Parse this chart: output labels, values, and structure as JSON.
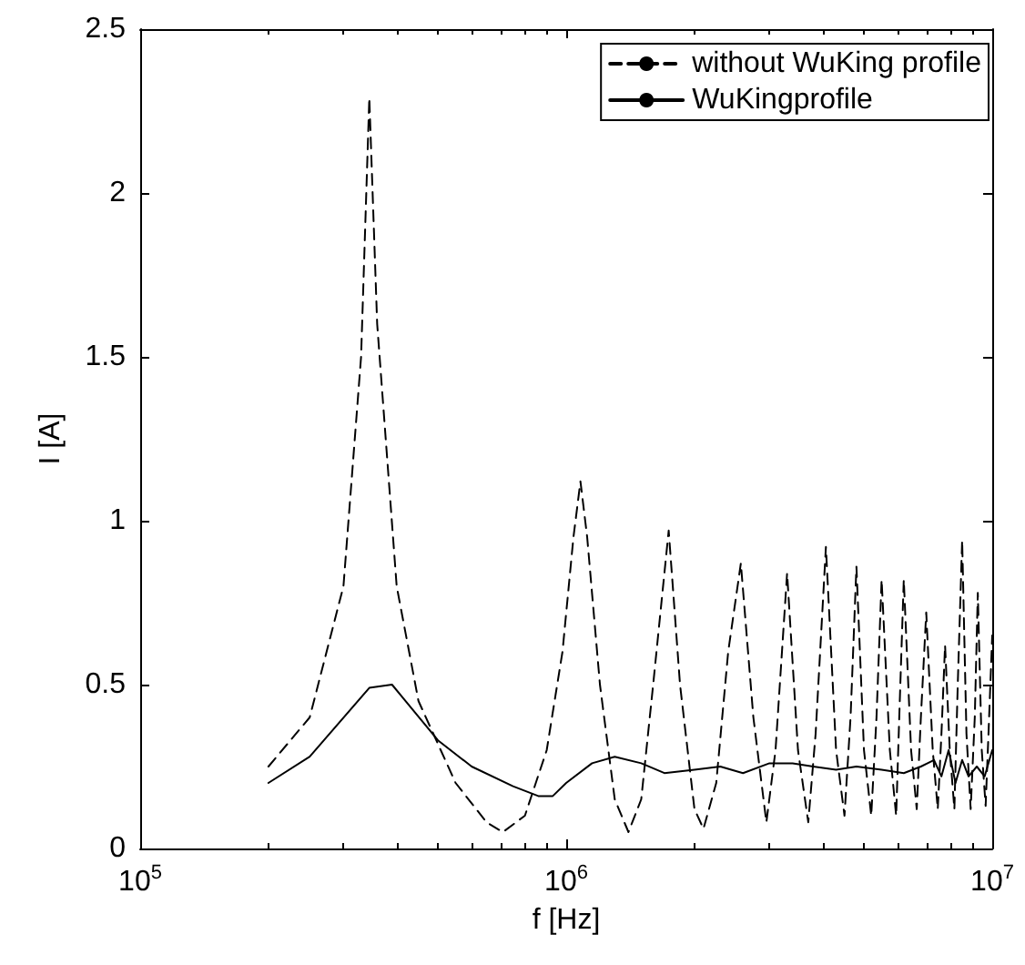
{
  "chart_data": {
    "type": "line",
    "xlabel": "f [Hz]",
    "ylabel": "I [A]",
    "log": "x",
    "grid": false,
    "legend": "top right",
    "marker": "none",
    "xlim": [
      100000,
      10000000
    ],
    "xticks": [
      {
        "value": 100000,
        "label": "10$^{5}$"
      },
      {
        "value": 1000000,
        "label": "10$^{6}$"
      },
      {
        "value": 10000000,
        "label": "10$^{7}$"
      }
    ],
    "ylim": [
      0,
      2.5
    ],
    "yticks": [
      0,
      0.5,
      1,
      1.5,
      2,
      2.5
    ],
    "series": [
      {
        "name": "without WuKing profile",
        "color": "#000000",
        "line_style": "dashed",
        "x": [
          200000,
          250000,
          300000,
          330000,
          345000,
          360000,
          400000,
          450000,
          550000,
          650000,
          710000,
          800000,
          900000,
          980000,
          1040000,
          1080000,
          1120000,
          1200000,
          1300000,
          1400000,
          1500000,
          1600000,
          1740000,
          1850000,
          2000000,
          2100000,
          2250000,
          2400000,
          2570000,
          2750000,
          2950000,
          3100000,
          3300000,
          3500000,
          3700000,
          3850000,
          4070000,
          4300000,
          4500000,
          4650000,
          4800000,
          5000000,
          5200000,
          5350000,
          5500000,
          5750000,
          5950000,
          6050000,
          6200000,
          6450000,
          6650000,
          6800000,
          7000000,
          7250000,
          7450000,
          7600000,
          7750000,
          7950000,
          8150000,
          8300000,
          8500000,
          8700000,
          8900000,
          9100000,
          9250000,
          9450000,
          9650000,
          9800000,
          10000000
        ],
        "values": [
          0.25,
          0.4,
          0.8,
          1.5,
          2.29,
          1.6,
          0.8,
          0.45,
          0.2,
          0.08,
          0.05,
          0.1,
          0.3,
          0.6,
          0.95,
          1.12,
          0.95,
          0.5,
          0.15,
          0.05,
          0.15,
          0.5,
          0.97,
          0.5,
          0.12,
          0.06,
          0.2,
          0.6,
          0.87,
          0.4,
          0.08,
          0.3,
          0.84,
          0.3,
          0.08,
          0.35,
          0.92,
          0.3,
          0.1,
          0.4,
          0.86,
          0.3,
          0.1,
          0.4,
          0.82,
          0.3,
          0.1,
          0.4,
          0.82,
          0.3,
          0.12,
          0.4,
          0.72,
          0.3,
          0.12,
          0.35,
          0.62,
          0.3,
          0.12,
          0.5,
          0.94,
          0.35,
          0.12,
          0.4,
          0.78,
          0.3,
          0.13,
          0.35,
          0.65
        ]
      },
      {
        "name": "WuKingprofile",
        "color": "#000000",
        "line_style": "solid",
        "x": [
          200000,
          250000,
          345000,
          390000,
          500000,
          600000,
          750000,
          860000,
          930000,
          1000000,
          1150000,
          1300000,
          1500000,
          1700000,
          2000000,
          2300000,
          2600000,
          3000000,
          3400000,
          3800000,
          4300000,
          4800000,
          5500000,
          6200000,
          6800000,
          7300000,
          7600000,
          7900000,
          8200000,
          8500000,
          8800000,
          9200000,
          9600000,
          10000000
        ],
        "values": [
          0.2,
          0.28,
          0.49,
          0.5,
          0.33,
          0.25,
          0.19,
          0.16,
          0.16,
          0.2,
          0.26,
          0.28,
          0.26,
          0.23,
          0.24,
          0.25,
          0.23,
          0.26,
          0.26,
          0.25,
          0.24,
          0.25,
          0.24,
          0.23,
          0.25,
          0.27,
          0.22,
          0.3,
          0.2,
          0.27,
          0.22,
          0.25,
          0.22,
          0.3
        ]
      }
    ]
  }
}
